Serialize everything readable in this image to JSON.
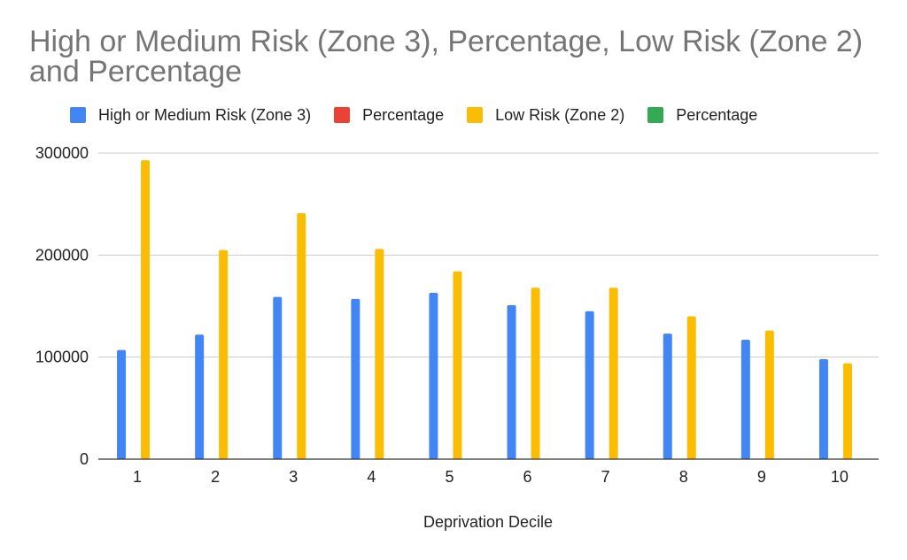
{
  "chart_data": {
    "type": "bar",
    "title": "High or Medium Risk (Zone 3), Percentage, Low Risk (Zone 2) and Percentage",
    "xlabel": "Deprivation Decile",
    "ylabel": "",
    "categories": [
      "1",
      "2",
      "3",
      "4",
      "5",
      "6",
      "7",
      "8",
      "9",
      "10"
    ],
    "series": [
      {
        "name": "High or Medium Risk (Zone 3)",
        "color": "#4285F4",
        "values": [
          107000,
          122000,
          159000,
          157000,
          163000,
          151000,
          145000,
          123000,
          117000,
          98000
        ]
      },
      {
        "name": "Percentage",
        "color": "#EA4335",
        "values": [
          0,
          0,
          0,
          0,
          0,
          0,
          0,
          0,
          0,
          0
        ]
      },
      {
        "name": "Low Risk (Zone 2)",
        "color": "#FBBC04",
        "values": [
          293000,
          205000,
          241000,
          206000,
          184000,
          168000,
          168000,
          140000,
          126000,
          94000
        ]
      },
      {
        "name": "Percentage",
        "color": "#34A853",
        "values": [
          0,
          0,
          0,
          0,
          0,
          0,
          0,
          0,
          0,
          0
        ]
      }
    ],
    "y_ticks": [
      "0",
      "100000",
      "200000",
      "300000"
    ],
    "ylim": [
      0,
      300000
    ],
    "grid": true,
    "legend_position": "top"
  }
}
